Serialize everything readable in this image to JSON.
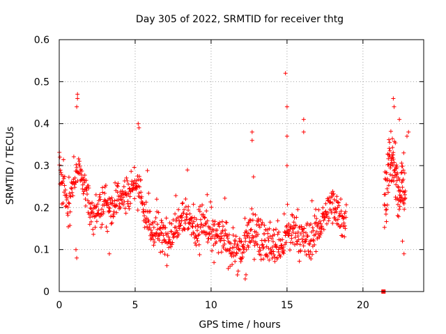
{
  "chart_data": {
    "type": "scatter",
    "title": "Day 305 of 2022, SRMTID for receiver thtg",
    "xlabel": "GPS time / hours",
    "ylabel": "SRMTID / TECUs",
    "xlim": [
      0,
      24
    ],
    "ylim": [
      0,
      0.6
    ],
    "xticks": [
      0,
      5,
      10,
      15,
      20
    ],
    "xtick_labels": [
      "0",
      "5",
      "10",
      "15",
      "20"
    ],
    "yticks": [
      0,
      0.1,
      0.2,
      0.3,
      0.4,
      0.5,
      0.6
    ],
    "ytick_labels": [
      "0",
      "0.1",
      "0.2",
      "0.3",
      "0.4",
      "0.5",
      "0.6"
    ],
    "grid": true,
    "marker": "+",
    "color": "#ff0000",
    "series": [
      {
        "name": "SRMTID",
        "trend": {
          "x": [
            0.0,
            0.3,
            0.6,
            1.0,
            1.3,
            1.6,
            2.0,
            2.5,
            3.0,
            3.5,
            4.0,
            4.5,
            5.0,
            5.3,
            5.6,
            6.0,
            6.5,
            7.0,
            7.5,
            8.0,
            8.5,
            9.0,
            9.5,
            10.0,
            10.5,
            11.0,
            11.5,
            12.0,
            12.5,
            13.0,
            13.5,
            14.0,
            14.5,
            15.0,
            15.5,
            16.0,
            16.5,
            17.0,
            17.5,
            18.0,
            18.5,
            18.9
          ],
          "y": [
            0.29,
            0.25,
            0.2,
            0.27,
            0.3,
            0.26,
            0.2,
            0.17,
            0.22,
            0.2,
            0.24,
            0.23,
            0.26,
            0.25,
            0.19,
            0.15,
            0.14,
            0.13,
            0.14,
            0.19,
            0.18,
            0.14,
            0.17,
            0.13,
            0.13,
            0.12,
            0.1,
            0.09,
            0.15,
            0.14,
            0.12,
            0.11,
            0.1,
            0.13,
            0.15,
            0.12,
            0.12,
            0.15,
            0.18,
            0.21,
            0.19,
            0.16
          ],
          "spread": 0.05
        },
        "late_trend": {
          "x": [
            21.4,
            21.7,
            22.0,
            22.3,
            22.6,
            22.8
          ],
          "y": [
            0.22,
            0.29,
            0.31,
            0.23,
            0.26,
            0.22
          ],
          "spread": 0.07
        },
        "highlights": [
          {
            "x": 1.2,
            "y": 0.47
          },
          {
            "x": 1.2,
            "y": 0.46
          },
          {
            "x": 1.15,
            "y": 0.44
          },
          {
            "x": 5.2,
            "y": 0.4
          },
          {
            "x": 5.25,
            "y": 0.39
          },
          {
            "x": 12.7,
            "y": 0.38
          },
          {
            "x": 12.7,
            "y": 0.36
          },
          {
            "x": 14.9,
            "y": 0.52
          },
          {
            "x": 15.0,
            "y": 0.44
          },
          {
            "x": 15.0,
            "y": 0.37
          },
          {
            "x": 15.0,
            "y": 0.3
          },
          {
            "x": 16.1,
            "y": 0.41
          },
          {
            "x": 16.1,
            "y": 0.38
          },
          {
            "x": 22.0,
            "y": 0.46
          },
          {
            "x": 22.05,
            "y": 0.44
          },
          {
            "x": 22.4,
            "y": 0.41
          },
          {
            "x": 23.0,
            "y": 0.38
          },
          {
            "x": 22.9,
            "y": 0.37
          },
          {
            "x": 1.1,
            "y": 0.1
          },
          {
            "x": 1.15,
            "y": 0.08
          },
          {
            "x": 3.3,
            "y": 0.09
          },
          {
            "x": 12.3,
            "y": 0.04
          },
          {
            "x": 12.25,
            "y": 0.03
          },
          {
            "x": 22.7,
            "y": 0.09
          },
          {
            "x": 22.6,
            "y": 0.12
          }
        ],
        "zero_marker": {
          "x": 21.35,
          "y": 0.0
        }
      }
    ]
  }
}
